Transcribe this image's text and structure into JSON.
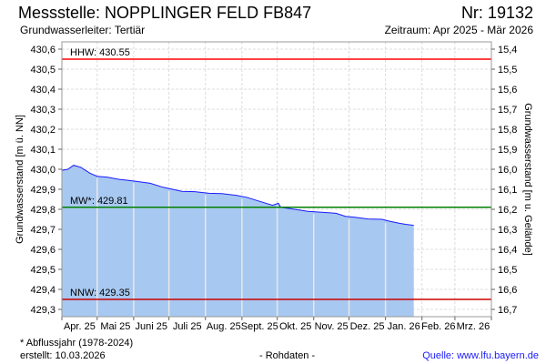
{
  "header": {
    "title": "Messstelle: NOPPLINGER FELD FB847",
    "number": "Nr: 19132",
    "aquifer": "Grundwasserleiter: Tertiär",
    "period": "Zeitraum: Apr 2025 - Mär 2026"
  },
  "footer": {
    "note": "* Abflussjahr (1978-2024)",
    "created": "erstellt:  10.03.2026",
    "data_type": "- Rohdaten -",
    "source": "Quelle: www.lfu.bayern.de"
  },
  "colors": {
    "fill": "#a7c8f0",
    "line": "#1a1aff",
    "hhw": "#ff0000",
    "mw": "#008000",
    "nnw": "#cc0000"
  },
  "chart_data": {
    "type": "area",
    "title": "Messstelle: NOPPLINGER FELD FB847",
    "ylabel": "Grundwasserstand [m ü. NN]",
    "ylabel_right": "Grundwasserstand [m u. Gelände]",
    "ylim": [
      429.3,
      430.6
    ],
    "ground_level": 446.0,
    "x_range": [
      "2025-04-01",
      "2026-04-01"
    ],
    "grid": true,
    "yticks": [
      "430,6",
      "430,5",
      "430,4",
      "430,3",
      "430,2",
      "430,1",
      "430,0",
      "429,9",
      "429,8",
      "429,7",
      "429,6",
      "429,5",
      "429,4",
      "429,3"
    ],
    "yticks_right": [
      "15,4",
      "15,5",
      "15,6",
      "15,7",
      "15,8",
      "15,9",
      "16,0",
      "16,1",
      "16,2",
      "16,3",
      "16,4",
      "16,5",
      "16,6",
      "16,7"
    ],
    "month_labels": [
      "Apr. 25",
      "Mai 25",
      "Juni 25",
      "Juli 25",
      "Aug. 25",
      "Sept. 25",
      "Okt. 25",
      "Nov. 25",
      "Dez. 25",
      "Jan. 26",
      "Feb. 26",
      "Mrz. 26"
    ],
    "reference_lines": [
      {
        "name": "HHW",
        "label": "HHW: 430.55",
        "value": 430.55
      },
      {
        "name": "MW",
        "label": "MW*: 429.81",
        "value": 429.81
      },
      {
        "name": "NNW",
        "label": "NNW: 429.35",
        "value": 429.35
      }
    ],
    "series": [
      {
        "name": "Grundwasserstand",
        "points": [
          [
            "2025-04-01",
            429.995
          ],
          [
            "2025-04-06",
            430.0
          ],
          [
            "2025-04-11",
            430.02
          ],
          [
            "2025-04-17",
            430.01
          ],
          [
            "2025-04-25",
            429.98
          ],
          [
            "2025-05-01",
            429.965
          ],
          [
            "2025-05-10",
            429.96
          ],
          [
            "2025-05-19",
            429.95
          ],
          [
            "2025-05-27",
            429.945
          ],
          [
            "2025-06-03",
            429.94
          ],
          [
            "2025-06-15",
            429.93
          ],
          [
            "2025-06-26",
            429.91
          ],
          [
            "2025-07-04",
            429.9
          ],
          [
            "2025-07-12",
            429.89
          ],
          [
            "2025-07-23",
            429.888
          ],
          [
            "2025-08-04",
            429.88
          ],
          [
            "2025-08-15",
            429.878
          ],
          [
            "2025-08-27",
            429.87
          ],
          [
            "2025-09-05",
            429.86
          ],
          [
            "2025-09-16",
            429.84
          ],
          [
            "2025-09-27",
            429.82
          ],
          [
            "2025-10-02",
            429.83
          ],
          [
            "2025-10-04",
            429.81
          ],
          [
            "2025-10-16",
            429.8
          ],
          [
            "2025-10-27",
            429.79
          ],
          [
            "2025-11-08",
            429.785
          ],
          [
            "2025-11-20",
            429.78
          ],
          [
            "2025-11-28",
            429.765
          ],
          [
            "2025-12-06",
            429.76
          ],
          [
            "2025-12-17",
            429.752
          ],
          [
            "2025-12-29",
            429.75
          ],
          [
            "2026-01-05",
            429.74
          ],
          [
            "2026-01-13",
            429.73
          ],
          [
            "2026-01-18",
            429.725
          ],
          [
            "2026-01-25",
            429.72
          ]
        ]
      }
    ]
  }
}
